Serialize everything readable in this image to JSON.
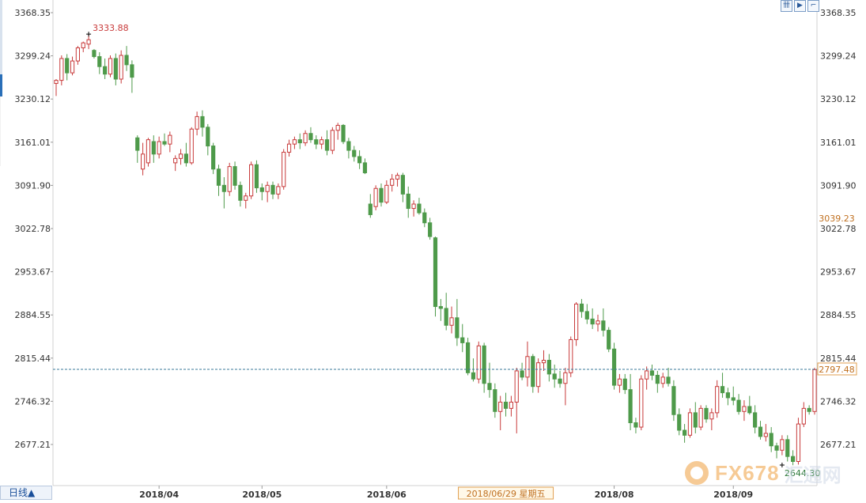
{
  "chart_data": {
    "type": "candlestick",
    "period_label": "日线▲",
    "y_ticks": [
      "3368.35",
      "3299.24",
      "3230.12",
      "3161.01",
      "3091.90",
      "3022.78",
      "2953.67",
      "2884.55",
      "2815.44",
      "2746.32",
      "2677.21"
    ],
    "y_values": [
      3368.35,
      3299.24,
      3230.12,
      3161.01,
      3091.9,
      3022.78,
      2953.67,
      2884.55,
      2815.44,
      2746.32,
      2677.21
    ],
    "x_ticks": [
      {
        "label": "2018/04",
        "index": 19
      },
      {
        "label": "2018/05",
        "index": 38
      },
      {
        "label": "2018/06",
        "index": 61
      },
      {
        "label": "2018/08",
        "index": 103
      },
      {
        "label": "2018/09",
        "index": 125
      }
    ],
    "crosshair_date": "2018/06/29 星期五",
    "crosshair_index": 83,
    "current_price": "2797.48",
    "current_price_value": 2797.48,
    "right_label_2": "3039.23",
    "right_label_2_value": 3039.23,
    "max_label": "3333.88",
    "max_index": 6,
    "min_label": "2644.30",
    "min_index": 134,
    "colors": {
      "up": "#c83a3a",
      "down": "#4e9a4a",
      "grid_line": "#3a7a9a"
    },
    "ohlc": [
      [
        3255,
        3262,
        3235,
        3260
      ],
      [
        3260,
        3300,
        3252,
        3295
      ],
      [
        3295,
        3302,
        3260,
        3272
      ],
      [
        3272,
        3298,
        3268,
        3291
      ],
      [
        3291,
        3315,
        3285,
        3312
      ],
      [
        3312,
        3322,
        3305,
        3320
      ],
      [
        3318,
        3334,
        3310,
        3325
      ],
      [
        3308,
        3310,
        3295,
        3298
      ],
      [
        3298,
        3305,
        3270,
        3282
      ],
      [
        3282,
        3295,
        3262,
        3270
      ],
      [
        3270,
        3300,
        3265,
        3295
      ],
      [
        3295,
        3303,
        3252,
        3262
      ],
      [
        3262,
        3308,
        3255,
        3300
      ],
      [
        3300,
        3315,
        3275,
        3285
      ],
      [
        3285,
        3292,
        3240,
        3265
      ],
      [
        3168,
        3172,
        3128,
        3148
      ],
      [
        3118,
        3160,
        3108,
        3142
      ],
      [
        3128,
        3168,
        3122,
        3165
      ],
      [
        3162,
        3172,
        3128,
        3142
      ],
      [
        3142,
        3170,
        3135,
        3162
      ],
      [
        3162,
        3175,
        3155,
        3158
      ],
      [
        3158,
        3178,
        3145,
        3172
      ],
      [
        3128,
        3140,
        3115,
        3135
      ],
      [
        3135,
        3150,
        3125,
        3142
      ],
      [
        3142,
        3160,
        3122,
        3128
      ],
      [
        3128,
        3185,
        3125,
        3182
      ],
      [
        3182,
        3210,
        3172,
        3202
      ],
      [
        3202,
        3212,
        3170,
        3185
      ],
      [
        3185,
        3190,
        3140,
        3155
      ],
      [
        3155,
        3160,
        3110,
        3118
      ],
      [
        3118,
        3125,
        3075,
        3092
      ],
      [
        3092,
        3105,
        3055,
        3082
      ],
      [
        3082,
        3128,
        3075,
        3122
      ],
      [
        3122,
        3130,
        3085,
        3092
      ],
      [
        3092,
        3098,
        3058,
        3068
      ],
      [
        3068,
        3080,
        3055,
        3075
      ],
      [
        3075,
        3130,
        3070,
        3125
      ],
      [
        3125,
        3132,
        3080,
        3088
      ],
      [
        3088,
        3095,
        3068,
        3082
      ],
      [
        3082,
        3098,
        3065,
        3092
      ],
      [
        3092,
        3098,
        3070,
        3078
      ],
      [
        3078,
        3095,
        3070,
        3090
      ],
      [
        3090,
        3150,
        3085,
        3145
      ],
      [
        3145,
        3165,
        3138,
        3158
      ],
      [
        3158,
        3170,
        3150,
        3165
      ],
      [
        3165,
        3175,
        3150,
        3160
      ],
      [
        3160,
        3180,
        3155,
        3175
      ],
      [
        3175,
        3185,
        3160,
        3165
      ],
      [
        3165,
        3172,
        3150,
        3158
      ],
      [
        3158,
        3170,
        3150,
        3165
      ],
      [
        3165,
        3180,
        3140,
        3148
      ],
      [
        3148,
        3185,
        3142,
        3180
      ],
      [
        3180,
        3192,
        3165,
        3188
      ],
      [
        3188,
        3190,
        3158,
        3162
      ],
      [
        3162,
        3168,
        3135,
        3148
      ],
      [
        3148,
        3155,
        3130,
        3138
      ],
      [
        3138,
        3148,
        3118,
        3128
      ],
      [
        3128,
        3135,
        3110,
        3112
      ],
      [
        3062,
        3078,
        3040,
        3045
      ],
      [
        3058,
        3092,
        3052,
        3087
      ],
      [
        3087,
        3095,
        3058,
        3065
      ],
      [
        3065,
        3100,
        3062,
        3092
      ],
      [
        3092,
        3110,
        3082,
        3102
      ],
      [
        3102,
        3112,
        3090,
        3108
      ],
      [
        3108,
        3112,
        3065,
        3078
      ],
      [
        3078,
        3090,
        3040,
        3055
      ],
      [
        3055,
        3068,
        3042,
        3062
      ],
      [
        3062,
        3072,
        3045,
        3048
      ],
      [
        3048,
        3055,
        3025,
        3032
      ],
      [
        3032,
        3040,
        3005,
        3010
      ],
      [
        3008,
        3010,
        2882,
        2898
      ],
      [
        2898,
        2910,
        2875,
        2895
      ],
      [
        2895,
        2920,
        2860,
        2868
      ],
      [
        2868,
        2898,
        2855,
        2880
      ],
      [
        2880,
        2910,
        2835,
        2848
      ],
      [
        2848,
        2870,
        2825,
        2840
      ],
      [
        2840,
        2848,
        2788,
        2792
      ],
      [
        2792,
        2815,
        2778,
        2782
      ],
      [
        2782,
        2842,
        2775,
        2835
      ],
      [
        2835,
        2840,
        2760,
        2775
      ],
      [
        2775,
        2808,
        2752,
        2765
      ],
      [
        2765,
        2775,
        2720,
        2730
      ],
      [
        2730,
        2755,
        2700,
        2745
      ],
      [
        2745,
        2760,
        2722,
        2735
      ],
      [
        2735,
        2755,
        2722,
        2745
      ],
      [
        2745,
        2800,
        2695,
        2795
      ],
      [
        2795,
        2808,
        2780,
        2785
      ],
      [
        2785,
        2842,
        2770,
        2818
      ],
      [
        2818,
        2822,
        2760,
        2770
      ],
      [
        2770,
        2815,
        2760,
        2808
      ],
      [
        2808,
        2828,
        2795,
        2812
      ],
      [
        2812,
        2822,
        2778,
        2790
      ],
      [
        2790,
        2805,
        2768,
        2782
      ],
      [
        2782,
        2795,
        2768,
        2775
      ],
      [
        2775,
        2800,
        2740,
        2792
      ],
      [
        2792,
        2850,
        2785,
        2845
      ],
      [
        2845,
        2905,
        2835,
        2902
      ],
      [
        2902,
        2910,
        2880,
        2890
      ],
      [
        2890,
        2902,
        2870,
        2878
      ],
      [
        2878,
        2895,
        2862,
        2870
      ],
      [
        2870,
        2885,
        2858,
        2875
      ],
      [
        2875,
        2895,
        2850,
        2860
      ],
      [
        2860,
        2865,
        2825,
        2830
      ],
      [
        2830,
        2840,
        2765,
        2772
      ],
      [
        2772,
        2790,
        2760,
        2782
      ],
      [
        2782,
        2790,
        2758,
        2765
      ],
      [
        2765,
        2790,
        2700,
        2712
      ],
      [
        2712,
        2720,
        2695,
        2705
      ],
      [
        2705,
        2788,
        2700,
        2782
      ],
      [
        2782,
        2802,
        2765,
        2795
      ],
      [
        2795,
        2805,
        2780,
        2788
      ],
      [
        2788,
        2795,
        2760,
        2775
      ],
      [
        2775,
        2792,
        2768,
        2785
      ],
      [
        2785,
        2800,
        2770,
        2775
      ],
      [
        2770,
        2780,
        2715,
        2725
      ],
      [
        2725,
        2735,
        2692,
        2700
      ],
      [
        2700,
        2710,
        2680,
        2692
      ],
      [
        2692,
        2735,
        2688,
        2728
      ],
      [
        2728,
        2745,
        2695,
        2705
      ],
      [
        2705,
        2740,
        2700,
        2735
      ],
      [
        2735,
        2740,
        2712,
        2718
      ],
      [
        2718,
        2735,
        2700,
        2728
      ],
      [
        2728,
        2780,
        2720,
        2770
      ],
      [
        2770,
        2792,
        2752,
        2760
      ],
      [
        2760,
        2768,
        2740,
        2752
      ],
      [
        2752,
        2770,
        2740,
        2748
      ],
      [
        2748,
        2758,
        2725,
        2730
      ],
      [
        2730,
        2748,
        2715,
        2738
      ],
      [
        2738,
        2755,
        2725,
        2728
      ],
      [
        2728,
        2740,
        2695,
        2705
      ],
      [
        2705,
        2715,
        2685,
        2690
      ],
      [
        2690,
        2710,
        2682,
        2695
      ],
      [
        2695,
        2705,
        2665,
        2675
      ],
      [
        2675,
        2680,
        2655,
        2668
      ],
      [
        2668,
        2692,
        2660,
        2685
      ],
      [
        2685,
        2692,
        2650,
        2658
      ],
      [
        2658,
        2668,
        2644,
        2650
      ],
      [
        2650,
        2720,
        2645,
        2710
      ],
      [
        2710,
        2745,
        2705,
        2735
      ],
      [
        2735,
        2740,
        2725,
        2730
      ],
      [
        2730,
        2800,
        2725,
        2797
      ]
    ]
  },
  "toolbar": {
    "btn1": "卌",
    "btn2": "▶",
    "btn3": "⌐"
  },
  "watermark": {
    "text": "FX678",
    "cn": "汇通网"
  }
}
